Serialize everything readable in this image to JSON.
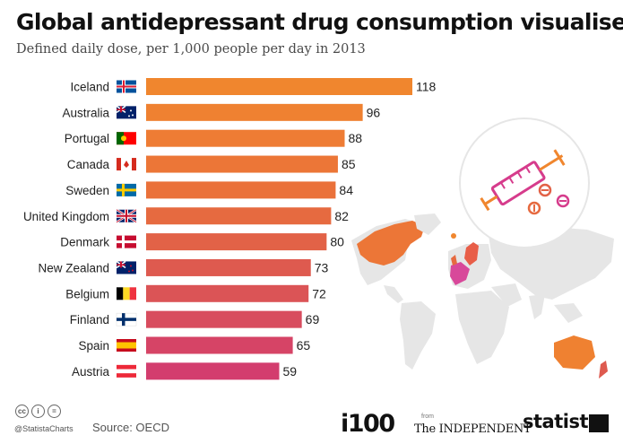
{
  "header": {
    "title": "Global antidepressant drug consumption visualised",
    "subtitle": "Defined daily dose, per 1,000 people per day in 2013"
  },
  "chart_data": {
    "type": "bar",
    "orientation": "horizontal",
    "title": "Global antidepressant drug consumption visualised",
    "subtitle": "Defined daily dose, per 1,000 people per day in 2013",
    "xlabel": "",
    "ylabel": "",
    "categories": [
      "Iceland",
      "Australia",
      "Portugal",
      "Canada",
      "Sweden",
      "United Kingdom",
      "Denmark",
      "New Zealand",
      "Belgium",
      "Finland",
      "Spain",
      "Austria"
    ],
    "values": [
      118,
      96,
      88,
      85,
      84,
      82,
      80,
      73,
      72,
      69,
      65,
      59
    ],
    "flag_icons": [
      "iceland-flag-icon",
      "australia-flag-icon",
      "portugal-flag-icon",
      "canada-flag-icon",
      "sweden-flag-icon",
      "united-kingdom-flag-icon",
      "denmark-flag-icon",
      "new-zealand-flag-icon",
      "belgium-flag-icon",
      "finland-flag-icon",
      "spain-flag-icon",
      "austria-flag-icon"
    ],
    "bar_colors": [
      "#f0862e",
      "#ef8131",
      "#ee7c34",
      "#ec7637",
      "#ea713a",
      "#e66a40",
      "#e26247",
      "#de5a4f",
      "#db5456",
      "#d84c5e",
      "#d64466",
      "#d33d6e"
    ],
    "xlim": [
      0,
      118
    ],
    "grid": false,
    "legend": "none"
  },
  "decoration": {
    "illustration_icons": [
      "syringe-icon",
      "pill-icon",
      "world-map-icon"
    ],
    "colors": {
      "orange": "#f0862e",
      "magenta": "#d63c8c",
      "map_grey": "#e6e6e6"
    }
  },
  "footer": {
    "handle": "@StatistaCharts",
    "source": "Source: OECD",
    "logo_i100": "i100",
    "logo_from": "from",
    "logo_independent": "The INDEPENDENT",
    "logo_statista": "statista"
  }
}
